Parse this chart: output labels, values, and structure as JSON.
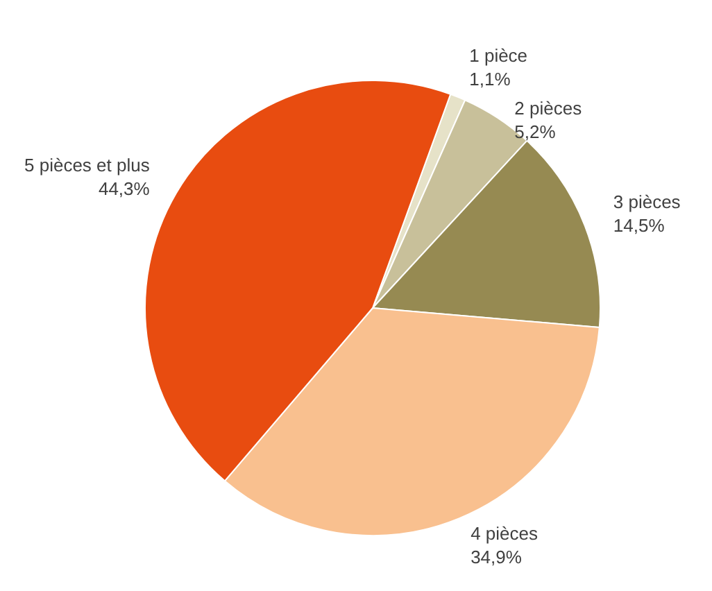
{
  "chart_data": {
    "type": "pie",
    "categories": [
      "1 pièce",
      "2 pièces",
      "3 pièces",
      "4 pièces",
      "5 pièces et plus"
    ],
    "values": [
      1.1,
      5.2,
      14.5,
      34.9,
      44.3
    ],
    "colors": [
      "#e6e2c8",
      "#c8c09a",
      "#968a52",
      "#f9c08f",
      "#e84c10"
    ],
    "value_labels": [
      "1,1%",
      "5,2%",
      "14,5%",
      "34,9%",
      "44,3%"
    ],
    "legend": false
  }
}
